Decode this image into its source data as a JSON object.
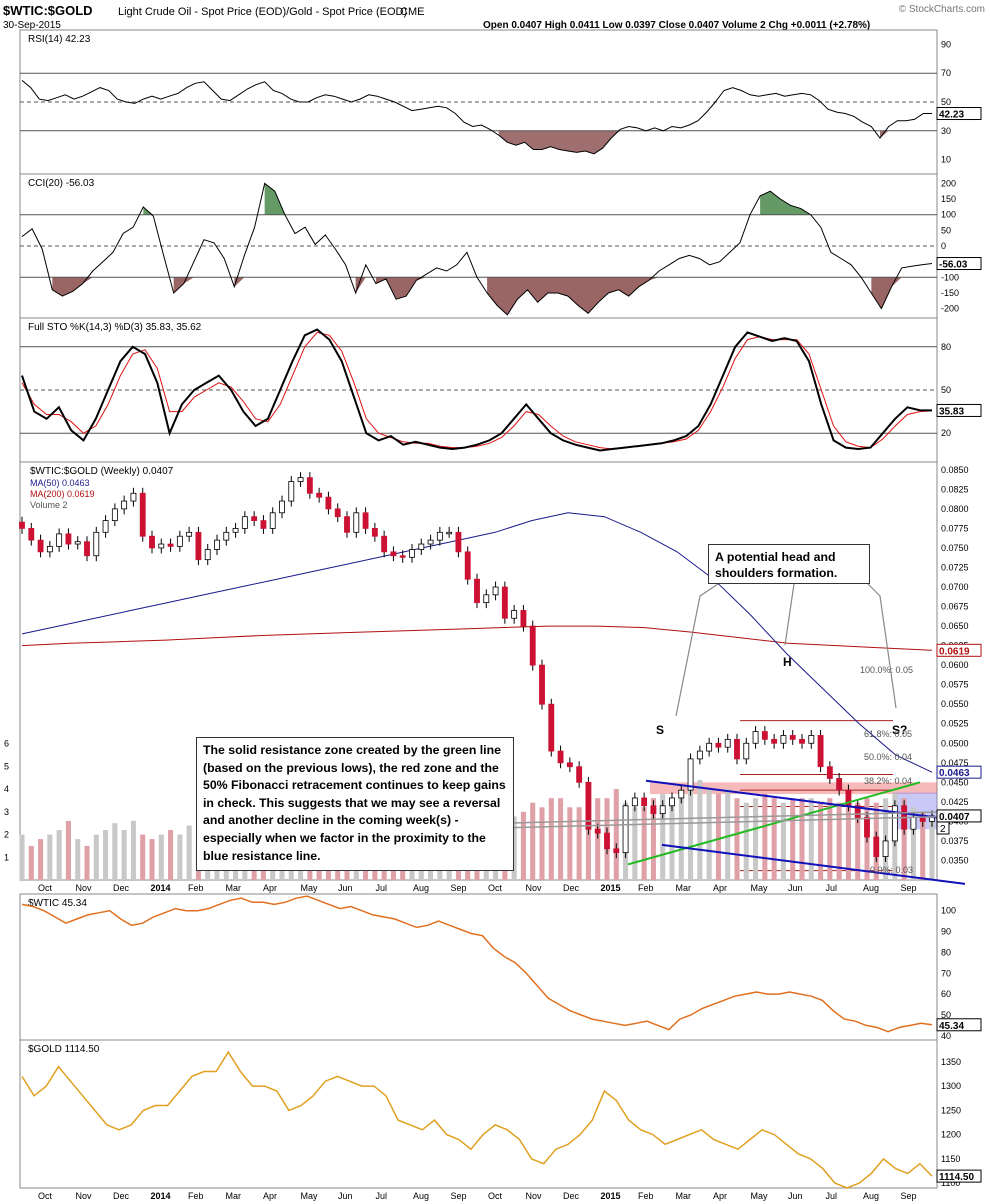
{
  "header": {
    "symbol": "$WTIC:$GOLD",
    "description": "Light Crude Oil - Spot Price (EOD)/Gold - Spot Price (EOD)",
    "exchange": "CME",
    "date": "30-Sep-2015",
    "ohlc": "Open 0.0407  High 0.0411  Low 0.0397  Close 0.0407  Volume 2  Chg +0.0011 (+2.78%)",
    "watermark": "© StockCharts.com"
  },
  "colors": {
    "candle_up": "#ffffff",
    "candle_down": "#cc1133",
    "ma50": "#1a1a8c",
    "ma200": "#b01010",
    "volume": "#e0a0a8",
    "wtic_line": "#e07020",
    "gold_line": "#e0a020",
    "overbought_fill": "#3f7f3f",
    "oversold_fill": "#7f3f3f",
    "resistance_red": "#ee6666",
    "blue_zone": "#8888ee",
    "trend_green": "#22bb22",
    "trend_blue": "#1111bb"
  },
  "chart_data": [
    {
      "type": "line",
      "panel": "RSI",
      "title": "RSI(14) 42.23",
      "current_value": "42.23",
      "y_ticks": [
        "90",
        "70",
        "50",
        "30",
        "10"
      ],
      "ylim": [
        0,
        100
      ],
      "levels": [
        70,
        50,
        30
      ],
      "series": [
        {
          "name": "RSI(14)",
          "values": [
            65,
            60,
            52,
            51,
            53,
            55,
            52,
            54,
            57,
            60,
            58,
            52,
            50,
            49,
            52,
            54,
            52,
            54,
            56,
            60,
            63,
            64,
            58,
            52,
            51,
            55,
            59,
            62,
            64,
            58,
            56,
            52,
            50,
            50,
            53,
            55,
            54,
            52,
            50,
            52,
            55,
            54,
            52,
            50,
            47,
            44,
            45,
            46,
            47,
            46,
            42,
            36,
            33,
            34,
            31,
            27,
            22,
            20,
            22,
            17,
            17,
            19,
            17,
            16,
            15,
            16,
            14,
            18,
            25,
            31,
            33,
            32,
            30,
            32,
            30,
            33,
            32,
            34,
            37,
            43,
            50,
            58,
            60,
            58,
            55,
            54,
            55,
            56,
            54,
            55,
            56,
            55,
            51,
            45,
            43,
            42,
            40,
            36,
            33,
            25,
            33,
            37,
            37,
            38,
            42,
            42
          ]
        }
      ]
    },
    {
      "type": "line",
      "panel": "CCI",
      "title": "CCI(20) -56.03",
      "current_value": "-56.03",
      "y_ticks": [
        "200",
        "150",
        "100",
        "50",
        "0",
        "-50",
        "-100",
        "-150",
        "-200"
      ],
      "ylim": [
        -230,
        230
      ],
      "levels": [
        100,
        0,
        -100
      ],
      "series": [
        {
          "name": "CCI(20)",
          "values": [
            30,
            55,
            -10,
            -140,
            -160,
            -145,
            -120,
            -80,
            -50,
            -20,
            40,
            60,
            125,
            95,
            -30,
            -150,
            -120,
            -50,
            20,
            10,
            -40,
            -130,
            -30,
            60,
            200,
            175,
            100,
            40,
            60,
            5,
            35,
            -10,
            -60,
            -150,
            -60,
            -120,
            -105,
            -170,
            -160,
            -110,
            -90,
            -70,
            -80,
            -60,
            -20,
            -100,
            -150,
            -190,
            -220,
            -170,
            -140,
            -180,
            -150,
            -150,
            -160,
            -190,
            -215,
            -180,
            -150,
            -140,
            -160,
            -130,
            -110,
            -80,
            -60,
            -40,
            -30,
            -40,
            -60,
            -50,
            -20,
            10,
            100,
            160,
            175,
            150,
            130,
            120,
            100,
            60,
            -20,
            -40,
            -60,
            -100,
            -150,
            -200,
            -130,
            -70,
            -65,
            -60,
            -56
          ]
        }
      ]
    },
    {
      "type": "line",
      "panel": "Stochastic",
      "title": "Full STO %K(14,3) %D(3) 35.83, 35.62",
      "current_value": "35.83",
      "y_ticks": [
        "80",
        "50",
        "20"
      ],
      "ylim": [
        0,
        100
      ],
      "levels": [
        80,
        50,
        20
      ],
      "series": [
        {
          "name": "%K",
          "values": [
            60,
            35,
            30,
            38,
            22,
            15,
            30,
            50,
            70,
            80,
            75,
            55,
            20,
            40,
            50,
            55,
            60,
            50,
            35,
            25,
            30,
            50,
            70,
            88,
            92,
            85,
            70,
            45,
            20,
            15,
            18,
            12,
            14,
            12,
            10,
            9,
            10,
            12,
            15,
            20,
            30,
            40,
            30,
            20,
            15,
            12,
            10,
            8,
            9,
            10,
            11,
            12,
            13,
            15,
            18,
            25,
            40,
            60,
            80,
            90,
            87,
            84,
            86,
            84,
            70,
            40,
            15,
            10,
            9,
            10,
            20,
            30,
            38,
            36,
            35.8
          ]
        },
        {
          "name": "%D",
          "values": [
            55,
            40,
            33,
            33,
            28,
            20,
            25,
            40,
            60,
            75,
            78,
            65,
            35,
            35,
            45,
            50,
            55,
            52,
            42,
            30,
            28,
            40,
            60,
            80,
            90,
            88,
            77,
            55,
            30,
            20,
            17,
            14,
            13,
            13,
            11,
            10,
            10,
            11,
            13,
            17,
            25,
            35,
            33,
            25,
            18,
            14,
            12,
            10,
            9,
            10,
            11,
            12,
            13,
            14,
            16,
            22,
            35,
            52,
            72,
            85,
            87,
            85,
            85,
            85,
            75,
            50,
            25,
            14,
            11,
            10,
            16,
            25,
            33,
            35,
            35.6
          ]
        }
      ]
    },
    {
      "type": "candlestick",
      "panel": "Price",
      "title": "$WTIC:$GOLD (Weekly) 0.0407",
      "legend": [
        "MA(50) 0.0463",
        "MA(200) 0.0619",
        "Volume 2"
      ],
      "current_value": "0.0407",
      "ma50_value": "0.0463",
      "ma200_value": "0.0619",
      "volume_value": "2",
      "volume_ticks": [
        "6",
        "5",
        "4",
        "3",
        "2",
        "1"
      ],
      "y_ticks": [
        "0.0850",
        "0.0825",
        "0.0800",
        "0.0775",
        "0.0750",
        "0.0725",
        "0.0700",
        "0.0675",
        "0.0650",
        "0.0625",
        "0.0600",
        "0.0575",
        "0.0550",
        "0.0525",
        "0.0500",
        "0.0475",
        "0.0450",
        "0.0425",
        "0.0400",
        "0.0375",
        "0.0350"
      ],
      "ylim": [
        0.0325,
        0.086
      ],
      "x_labels": [
        "Oct",
        "Nov",
        "Dec",
        "2014",
        "Feb",
        "Mar",
        "Apr",
        "May",
        "Jun",
        "Jul",
        "Aug",
        "Sep",
        "Oct",
        "Nov",
        "Dec",
        "2015",
        "Feb",
        "Mar",
        "Apr",
        "May",
        "Jun",
        "Jul",
        "Aug",
        "Sep"
      ],
      "closes": [
        0.0775,
        0.076,
        0.0745,
        0.0752,
        0.0768,
        0.0755,
        0.0758,
        0.074,
        0.077,
        0.0785,
        0.08,
        0.081,
        0.082,
        0.0765,
        0.075,
        0.0755,
        0.0752,
        0.0765,
        0.077,
        0.0735,
        0.0748,
        0.076,
        0.077,
        0.0775,
        0.079,
        0.0785,
        0.0775,
        0.0795,
        0.081,
        0.0835,
        0.084,
        0.082,
        0.0815,
        0.08,
        0.079,
        0.077,
        0.0795,
        0.0775,
        0.0765,
        0.0745,
        0.074,
        0.0738,
        0.0748,
        0.0755,
        0.076,
        0.077,
        0.077,
        0.0745,
        0.071,
        0.068,
        0.069,
        0.07,
        0.066,
        0.067,
        0.065,
        0.06,
        0.055,
        0.049,
        0.0475,
        0.047,
        0.045,
        0.039,
        0.0385,
        0.0365,
        0.036,
        0.042,
        0.043,
        0.042,
        0.041,
        0.042,
        0.043,
        0.044,
        0.048,
        0.049,
        0.05,
        0.0495,
        0.0505,
        0.048,
        0.05,
        0.0515,
        0.0505,
        0.05,
        0.051,
        0.0505,
        0.05,
        0.051,
        0.047,
        0.0455,
        0.044,
        0.042,
        0.0405,
        0.038,
        0.0355,
        0.0375,
        0.042,
        0.039,
        0.0405,
        0.04,
        0.0407
      ],
      "ma50": [
        0.064,
        0.065,
        0.066,
        0.067,
        0.068,
        0.069,
        0.07,
        0.071,
        0.072,
        0.073,
        0.074,
        0.075,
        0.076,
        0.077,
        0.0785,
        0.0795,
        0.079,
        0.077,
        0.0745,
        0.071,
        0.0665,
        0.0615,
        0.057,
        0.0525,
        0.0485,
        0.0463
      ],
      "ma200": [
        0.0625,
        0.0628,
        0.063,
        0.0632,
        0.0635,
        0.0638,
        0.064,
        0.0642,
        0.0644,
        0.0646,
        0.0648,
        0.065,
        0.065,
        0.0648,
        0.0642,
        0.0635,
        0.0628,
        0.0625,
        0.0622,
        0.0619
      ],
      "volume": [
        2,
        1.5,
        1.8,
        2,
        2.2,
        2.6,
        1.8,
        1.5,
        2,
        2.2,
        2.5,
        2.2,
        2.6,
        2,
        1.8,
        2,
        2.2,
        2,
        2.4,
        1.6,
        2,
        2.4,
        2.4,
        2.6,
        2.8,
        2.4,
        2.2,
        2.6,
        2.2,
        2.6,
        2.8,
        2.4,
        2.2,
        1.8,
        2,
        2.2,
        2,
        2.4,
        2,
        2.2,
        2,
        1.8,
        2.2,
        2.4,
        2.6,
        2.6,
        2.8,
        2.4,
        2.6,
        2.2,
        2.4,
        2.2,
        2.6,
        2.8,
        3,
        3.4,
        3.2,
        3.6,
        3.6,
        3.2,
        3.2,
        3.4,
        3.6,
        3.6,
        4,
        3.4,
        3.2,
        3.2,
        3.6,
        3.8,
        3.6,
        3.8,
        4.2,
        4.4,
        4,
        3.8,
        4,
        3.6,
        3.4,
        3.6,
        3.8,
        3.6,
        3.4,
        3.6,
        3.6,
        3.6,
        3.4,
        3.6,
        3.4,
        3.2,
        3.4,
        3.6,
        3.4,
        3.6,
        3.8,
        3.6,
        3.2,
        3,
        2.6
      ],
      "annotations": {
        "left_box": "The solid resistance zone created by the green line (based on the previous lows), the red zone and the 50% Fibonacci retracement continues to keep gains in check. This suggests that we may see a reversal and another decline in the coming week(s) - especially when we factor in the proximity to the blue resistance line.",
        "right_box": "A potential head and shoulders formation.",
        "label_s": "S",
        "label_h": "H",
        "label_s2": "S?",
        "fib_100": "100.0%: 0.05",
        "fib_618": "61.8%: 0.05",
        "fib_500": "50.0%: 0.04",
        "fib_382": "38.2%: 0.04",
        "fib_0": "0.0%: 0.03"
      }
    },
    {
      "type": "line",
      "panel": "WTIC",
      "title": "$WTIC 45.34",
      "current_value": "45.34",
      "y_ticks": [
        "100",
        "90",
        "80",
        "70",
        "60",
        "50",
        "40"
      ],
      "ylim": [
        38,
        108
      ],
      "series": [
        {
          "name": "$WTIC",
          "values": [
            103,
            102,
            100,
            97,
            94,
            96,
            98,
            99,
            100,
            96,
            93,
            94,
            97,
            99,
            101,
            100,
            100,
            101,
            103,
            105,
            106,
            104,
            104,
            103,
            104,
            106,
            107,
            105,
            103,
            101,
            102,
            100,
            98,
            97,
            96,
            94,
            92,
            93,
            95,
            93,
            91,
            89,
            88,
            82,
            78,
            75,
            70,
            64,
            58,
            55,
            52,
            50,
            48,
            47,
            46,
            45,
            46,
            47,
            45,
            43,
            48,
            50,
            53,
            55,
            57,
            59,
            60,
            61,
            60,
            60,
            61,
            60,
            59,
            57,
            52,
            48,
            47,
            45,
            44,
            42,
            44,
            45,
            46,
            45.3
          ]
        }
      ]
    },
    {
      "type": "line",
      "panel": "GOLD",
      "title": "$GOLD 1114.50",
      "current_value": "1114.50",
      "y_ticks": [
        "1350",
        "1300",
        "1250",
        "1200",
        "1150",
        "1100"
      ],
      "ylim": [
        1090,
        1395
      ],
      "x_labels": [
        "Oct",
        "Nov",
        "Dec",
        "2014",
        "Feb",
        "Mar",
        "Apr",
        "May",
        "Jun",
        "Jul",
        "Aug",
        "Sep",
        "Oct",
        "Nov",
        "Dec",
        "2015",
        "Feb",
        "Mar",
        "Apr",
        "May",
        "Jun",
        "Jul",
        "Aug",
        "Sep"
      ],
      "series": [
        {
          "name": "$GOLD",
          "values": [
            1320,
            1280,
            1300,
            1340,
            1310,
            1280,
            1250,
            1220,
            1210,
            1220,
            1250,
            1260,
            1260,
            1290,
            1320,
            1330,
            1330,
            1370,
            1330,
            1300,
            1300,
            1290,
            1250,
            1260,
            1280,
            1310,
            1320,
            1310,
            1300,
            1300,
            1280,
            1230,
            1220,
            1210,
            1230,
            1200,
            1190,
            1170,
            1200,
            1220,
            1210,
            1190,
            1150,
            1140,
            1170,
            1180,
            1200,
            1230,
            1290,
            1270,
            1230,
            1210,
            1200,
            1180,
            1190,
            1200,
            1210,
            1190,
            1180,
            1170,
            1190,
            1210,
            1200,
            1180,
            1160,
            1150,
            1130,
            1100,
            1090,
            1100,
            1120,
            1150,
            1130,
            1120,
            1140,
            1114.5
          ]
        }
      ]
    }
  ]
}
